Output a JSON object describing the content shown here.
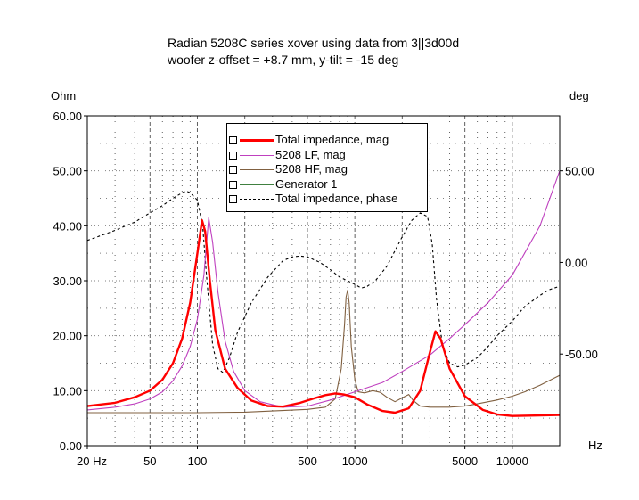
{
  "chart_data": {
    "type": "line",
    "title": "Radian 5208C series xover using data from 3||3d00d",
    "subtitle": "woofer z-offset = +8.7 mm, y-tilt = -15 deg",
    "ylabel": "Ohm",
    "ylabel_right": "deg",
    "xlabel": "Hz",
    "x_scale": "log",
    "xlim": [
      20,
      20000
    ],
    "ylim": [
      0,
      60
    ],
    "ylim_right": [
      -100,
      80
    ],
    "grid": true,
    "legend_position": "top-center",
    "x_ticks": [
      {
        "value": 20,
        "label": "20 Hz"
      },
      {
        "value": 50,
        "label": "50"
      },
      {
        "value": 100,
        "label": "100"
      },
      {
        "value": 500,
        "label": "500"
      },
      {
        "value": 1000,
        "label": "1000"
      },
      {
        "value": 5000,
        "label": "5000"
      },
      {
        "value": 10000,
        "label": "10000"
      }
    ],
    "y_ticks": [
      {
        "value": 0,
        "label": "0.00"
      },
      {
        "value": 10,
        "label": "10.00"
      },
      {
        "value": 20,
        "label": "20.00"
      },
      {
        "value": 30,
        "label": "30.00"
      },
      {
        "value": 40,
        "label": "40.00"
      },
      {
        "value": 50,
        "label": "50.00"
      },
      {
        "value": 60,
        "label": "60.00"
      }
    ],
    "y_ticks_right": [
      {
        "value": 50,
        "label": "50.00"
      },
      {
        "value": 0,
        "label": "0.00"
      },
      {
        "value": -50,
        "label": "-50.00"
      }
    ],
    "series": [
      {
        "name": "Total impedance, mag",
        "axis": "left",
        "color": "#ff0000",
        "style": "solid-thick",
        "points": [
          [
            20,
            7.2
          ],
          [
            30,
            7.8
          ],
          [
            40,
            8.8
          ],
          [
            50,
            10
          ],
          [
            60,
            12
          ],
          [
            70,
            15
          ],
          [
            80,
            19.5
          ],
          [
            90,
            26
          ],
          [
            100,
            35
          ],
          [
            107,
            41
          ],
          [
            112,
            39
          ],
          [
            120,
            30
          ],
          [
            130,
            21
          ],
          [
            150,
            14
          ],
          [
            180,
            10.5
          ],
          [
            220,
            8.2
          ],
          [
            280,
            7.2
          ],
          [
            350,
            7.1
          ],
          [
            450,
            7.8
          ],
          [
            550,
            8.6
          ],
          [
            650,
            9.2
          ],
          [
            750,
            9.5
          ],
          [
            850,
            9.3
          ],
          [
            1000,
            8.8
          ],
          [
            1200,
            7.5
          ],
          [
            1500,
            6.3
          ],
          [
            1800,
            6.0
          ],
          [
            2200,
            6.8
          ],
          [
            2600,
            10
          ],
          [
            3000,
            17
          ],
          [
            3250,
            20.8
          ],
          [
            3500,
            19.5
          ],
          [
            4000,
            14
          ],
          [
            5000,
            9
          ],
          [
            6500,
            6.5
          ],
          [
            8000,
            5.7
          ],
          [
            10000,
            5.4
          ],
          [
            15000,
            5.5
          ],
          [
            20000,
            5.6
          ]
        ]
      },
      {
        "name": "5208 LF, mag",
        "axis": "left",
        "color": "#bf40bf",
        "style": "solid",
        "points": [
          [
            20,
            6.5
          ],
          [
            30,
            7
          ],
          [
            40,
            7.6
          ],
          [
            50,
            8.5
          ],
          [
            60,
            9.8
          ],
          [
            70,
            11.8
          ],
          [
            80,
            14.5
          ],
          [
            90,
            18
          ],
          [
            100,
            23
          ],
          [
            110,
            31
          ],
          [
            118,
            41.5
          ],
          [
            125,
            37
          ],
          [
            135,
            28
          ],
          [
            150,
            19
          ],
          [
            170,
            13.5
          ],
          [
            200,
            10
          ],
          [
            250,
            8
          ],
          [
            350,
            7
          ],
          [
            500,
            7.2
          ],
          [
            700,
            8.3
          ],
          [
            1000,
            9.8
          ],
          [
            1500,
            11.5
          ],
          [
            2000,
            13.5
          ],
          [
            3000,
            16.5
          ],
          [
            4000,
            19.5
          ],
          [
            5000,
            22
          ],
          [
            7000,
            26
          ],
          [
            10000,
            31
          ],
          [
            15000,
            40
          ],
          [
            20000,
            50
          ]
        ]
      },
      {
        "name": "5208 HF, mag",
        "axis": "left",
        "color": "#806040",
        "style": "solid",
        "points": [
          [
            20,
            6
          ],
          [
            100,
            6
          ],
          [
            200,
            6.1
          ],
          [
            300,
            6.3
          ],
          [
            500,
            6.6
          ],
          [
            650,
            7
          ],
          [
            750,
            8.5
          ],
          [
            820,
            14
          ],
          [
            860,
            22
          ],
          [
            880,
            27
          ],
          [
            900,
            28.3
          ],
          [
            920,
            26
          ],
          [
            950,
            18
          ],
          [
            1000,
            12
          ],
          [
            1050,
            9.8
          ],
          [
            1150,
            9.6
          ],
          [
            1300,
            10
          ],
          [
            1450,
            9.7
          ],
          [
            1600,
            8.8
          ],
          [
            1800,
            8
          ],
          [
            2000,
            8.7
          ],
          [
            2200,
            9.3
          ],
          [
            2350,
            8.2
          ],
          [
            2600,
            7.2
          ],
          [
            3000,
            7
          ],
          [
            4000,
            7
          ],
          [
            5000,
            7.2
          ],
          [
            6000,
            7.6
          ],
          [
            8000,
            8.3
          ],
          [
            10000,
            9
          ],
          [
            12000,
            9.8
          ],
          [
            15000,
            11
          ],
          [
            20000,
            12.8
          ]
        ]
      },
      {
        "name": "Generator 1",
        "axis": "left",
        "color": "#408040",
        "style": "solid",
        "points": []
      },
      {
        "name": "Total impedance, phase",
        "axis": "right",
        "color": "#000000",
        "style": "dashed",
        "points": [
          [
            20,
            12
          ],
          [
            25,
            15
          ],
          [
            30,
            17.5
          ],
          [
            40,
            22
          ],
          [
            50,
            27
          ],
          [
            60,
            31
          ],
          [
            70,
            35
          ],
          [
            80,
            38
          ],
          [
            85,
            39
          ],
          [
            90,
            38
          ],
          [
            100,
            34
          ],
          [
            108,
            20
          ],
          [
            115,
            -10
          ],
          [
            125,
            -45
          ],
          [
            135,
            -58
          ],
          [
            145,
            -60
          ],
          [
            160,
            -52
          ],
          [
            180,
            -38
          ],
          [
            220,
            -22
          ],
          [
            280,
            -8
          ],
          [
            350,
            1
          ],
          [
            400,
            3
          ],
          [
            450,
            3.5
          ],
          [
            500,
            3
          ],
          [
            600,
            0
          ],
          [
            700,
            -4
          ],
          [
            800,
            -8
          ],
          [
            900,
            -10
          ],
          [
            1000,
            -12
          ],
          [
            1100,
            -14
          ],
          [
            1200,
            -13
          ],
          [
            1350,
            -10
          ],
          [
            1600,
            -2
          ],
          [
            2000,
            14
          ],
          [
            2300,
            23
          ],
          [
            2600,
            27
          ],
          [
            2900,
            25
          ],
          [
            3100,
            10
          ],
          [
            3300,
            -20
          ],
          [
            3600,
            -45
          ],
          [
            4000,
            -55
          ],
          [
            4500,
            -57
          ],
          [
            5000,
            -56
          ],
          [
            6000,
            -52
          ],
          [
            7000,
            -46
          ],
          [
            8000,
            -40
          ],
          [
            10000,
            -32
          ],
          [
            12000,
            -24
          ],
          [
            15000,
            -18
          ],
          [
            17000,
            -15
          ],
          [
            20000,
            -13
          ]
        ]
      }
    ]
  }
}
